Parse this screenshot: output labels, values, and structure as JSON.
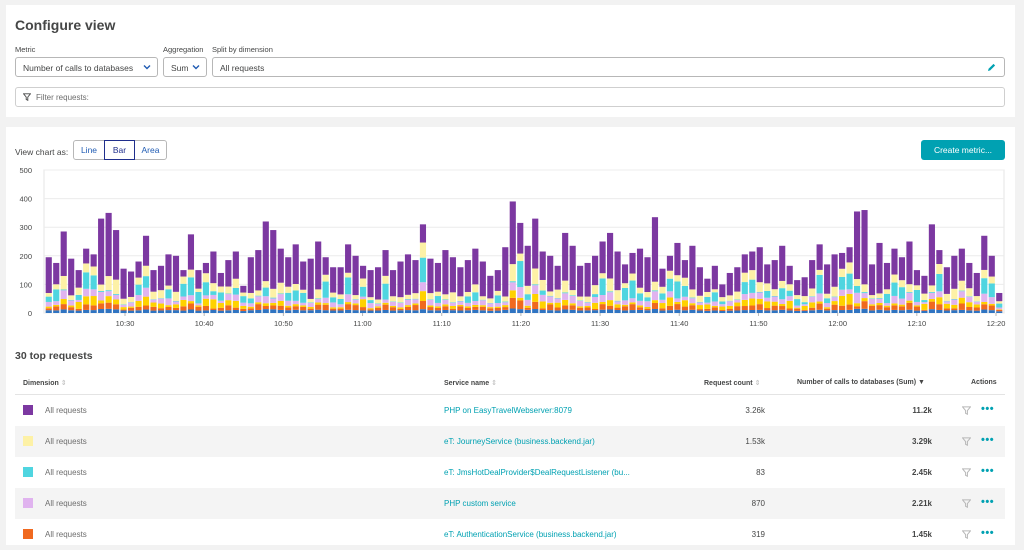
{
  "configure": {
    "title": "Configure view",
    "metric_label": "Metric",
    "metric_value": "Number of calls to databases",
    "aggregation_label": "Aggregation",
    "aggregation_value": "Sum",
    "split_label": "Split by dimension",
    "split_value": "All requests",
    "filter_placeholder": "Filter requests:"
  },
  "chart_controls": {
    "view_as_label": "View chart as:",
    "options": [
      "Line",
      "Bar",
      "Area"
    ],
    "selected": "Bar",
    "create_metric_label": "Create metric..."
  },
  "chart_data": {
    "type": "bar",
    "stacked": true,
    "ylim": [
      0,
      500
    ],
    "yticks": [
      "500",
      "400",
      "300",
      "200",
      "100",
      "0"
    ],
    "xticks": [
      "10:30",
      "10:40",
      "10:50",
      "11:00",
      "11:10",
      "11:20",
      "11:30",
      "11:40",
      "11:50",
      "12:00",
      "12:10",
      "12:20"
    ],
    "colors": {
      "php_easytravel": "#7c38a1",
      "journey": "#fdf1a6",
      "jmshotdeal": "#4fd5e0",
      "php_custom": "#e0b3ef",
      "auth": "#f0691f",
      "other_yellow": "#ffd200",
      "other_blue": "#2f74c2"
    },
    "totals": [
      195,
      175,
      285,
      190,
      150,
      225,
      205,
      330,
      350,
      290,
      155,
      145,
      180,
      270,
      150,
      165,
      205,
      200,
      150,
      275,
      150,
      175,
      215,
      140,
      185,
      215,
      95,
      195,
      220,
      320,
      290,
      225,
      195,
      240,
      180,
      190,
      250,
      195,
      160,
      160,
      240,
      200,
      165,
      150,
      160,
      220,
      150,
      180,
      205,
      185,
      310,
      190,
      175,
      220,
      195,
      160,
      185,
      225,
      180,
      130,
      150,
      230,
      390,
      315,
      235,
      330,
      215,
      200,
      165,
      280,
      235,
      165,
      175,
      200,
      250,
      280,
      215,
      170,
      210,
      225,
      195,
      335,
      155,
      200,
      245,
      185,
      235,
      160,
      120,
      165,
      100,
      140,
      160,
      205,
      215,
      230,
      170,
      185,
      235,
      165,
      115,
      125,
      185,
      240,
      170,
      205,
      210,
      230,
      355,
      360,
      170,
      245,
      175,
      225,
      195,
      250,
      150,
      130,
      310,
      220,
      160,
      200,
      225,
      175,
      140,
      270,
      200,
      70
    ],
    "legend_colors": [
      "#7c38a1",
      "#fdf1a6",
      "#4fd5e0",
      "#e0b3ef",
      "#f0691f"
    ]
  },
  "table": {
    "section_title": "30 top requests",
    "headers": {
      "dimension": "Dimension",
      "service": "Service name",
      "request_count": "Request count",
      "calls": "Number of calls to databases (Sum)",
      "actions": "Actions"
    },
    "rows": [
      {
        "dimension": "All requests",
        "service": "PHP on EasyTravelWebserver:8079",
        "count": "3.26k",
        "calls": "11.2k",
        "color": "#7c38a1"
      },
      {
        "dimension": "All requests",
        "service": "eT: JourneyService (business.backend.jar)",
        "count": "1.53k",
        "calls": "3.29k",
        "color": "#fdf1a6"
      },
      {
        "dimension": "All requests",
        "service": "eT: JmsHotDealProvider$DealRequestListener (bu...",
        "count": "83",
        "calls": "2.45k",
        "color": "#4fd5e0"
      },
      {
        "dimension": "All requests",
        "service": "PHP custom service",
        "count": "870",
        "calls": "2.21k",
        "color": "#e0b3ef"
      },
      {
        "dimension": "All requests",
        "service": "eT: AuthenticationService (business.backend.jar)",
        "count": "319",
        "calls": "1.45k",
        "color": "#f0691f"
      }
    ]
  }
}
